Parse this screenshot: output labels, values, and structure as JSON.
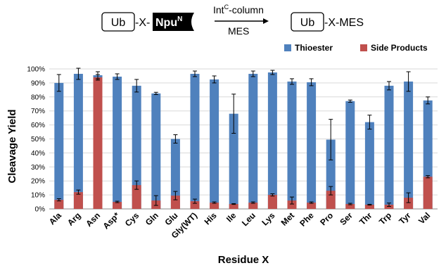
{
  "scheme": {
    "reactant_box": "Ub",
    "reactant_linker": "-X-",
    "reactant_tag": "Npu",
    "reactant_tag_sup": "N",
    "arrow_top": "Int",
    "arrow_top_sup": "C",
    "arrow_top_suffix": "-column",
    "arrow_bottom": "MES",
    "product_box": "Ub",
    "product_suffix": "-X-MES"
  },
  "colors": {
    "thioester": "#4f81bd",
    "side_products": "#c0504d"
  },
  "chart_data": {
    "type": "bar",
    "stacked": false,
    "overlaid": true,
    "categories": [
      "Ala",
      "Arg",
      "Asn",
      "Asp*",
      "Cys",
      "Gln",
      "Glu",
      "Gly(WT)",
      "His",
      "Ile",
      "Leu",
      "Lys",
      "Met",
      "Phe",
      "Pro",
      "Ser",
      "Thr",
      "Trp",
      "Tyr",
      "Val"
    ],
    "series": [
      {
        "name": "Thioester",
        "values": [
          90,
          96.5,
          95.5,
          94.5,
          88,
          82.5,
          50,
          96.5,
          92.5,
          68,
          96.5,
          97.5,
          91,
          90.5,
          49.5,
          77,
          62,
          88,
          91,
          77.5
        ],
        "errors": [
          6,
          4,
          2.5,
          2,
          4.5,
          0.8,
          3,
          2,
          2.5,
          14,
          2,
          1.5,
          2,
          2.5,
          14.5,
          0.8,
          5,
          3,
          7,
          2.5
        ]
      },
      {
        "name": "Side Products",
        "values": [
          6.5,
          12,
          94,
          5,
          17,
          6,
          9.5,
          5.5,
          4.5,
          3.5,
          4.5,
          10,
          6,
          4.5,
          13,
          3.5,
          3,
          3,
          8,
          23
        ],
        "errors": [
          0.8,
          1.5,
          2,
          0.5,
          3,
          3.5,
          3,
          1.5,
          0.5,
          0.3,
          0.5,
          0.8,
          2.5,
          0.5,
          3,
          0.5,
          0.3,
          1.2,
          3.5,
          0.8
        ]
      }
    ],
    "ylabel": "Cleavage Yield",
    "xlabel": "Residue X",
    "ylim": [
      0,
      100
    ],
    "ytick_step": 10,
    "ytick_suffix": "%",
    "legend_position": "top-right",
    "grid": true
  }
}
